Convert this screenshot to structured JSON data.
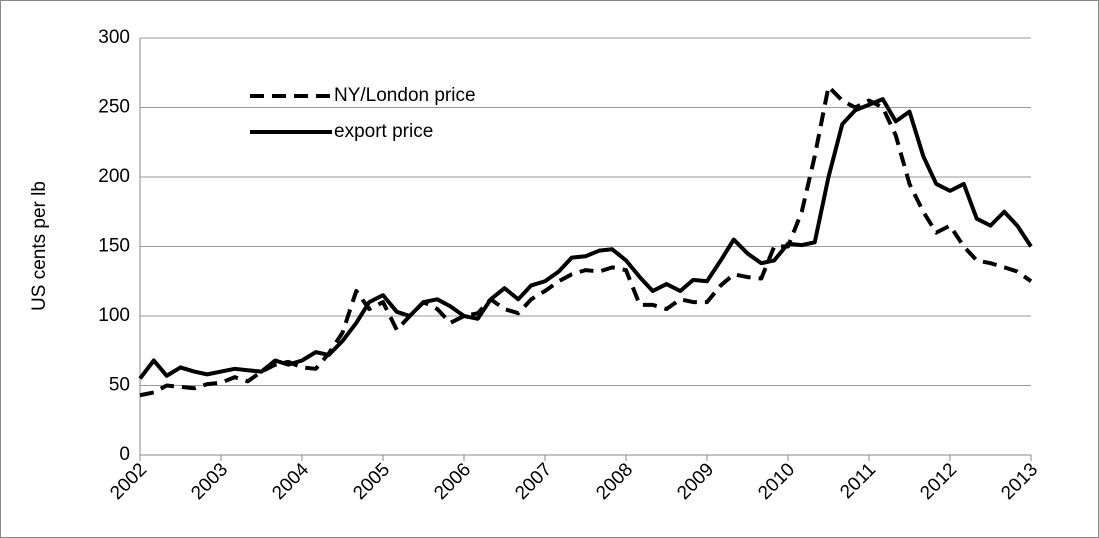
{
  "chart_data": {
    "type": "line",
    "ylabel": "US cents per lb",
    "x": [
      2002,
      2002.17,
      2002.33,
      2002.5,
      2002.67,
      2002.83,
      2003,
      2003.17,
      2003.33,
      2003.5,
      2003.67,
      2003.83,
      2004,
      2004.17,
      2004.33,
      2004.5,
      2004.67,
      2004.83,
      2005,
      2005.17,
      2005.33,
      2005.5,
      2005.67,
      2005.83,
      2006,
      2006.17,
      2006.33,
      2006.5,
      2006.67,
      2006.83,
      2007,
      2007.17,
      2007.33,
      2007.5,
      2007.67,
      2007.83,
      2008,
      2008.17,
      2008.33,
      2008.5,
      2008.67,
      2008.83,
      2009,
      2009.17,
      2009.33,
      2009.5,
      2009.67,
      2009.83,
      2010,
      2010.17,
      2010.33,
      2010.5,
      2010.67,
      2010.83,
      2011,
      2011.17,
      2011.33,
      2011.5,
      2011.67,
      2011.83,
      2012,
      2012.17,
      2012.33,
      2012.5,
      2012.67,
      2012.83,
      2013
    ],
    "series": [
      {
        "name": "NY/London price",
        "color": "#000000",
        "dash": true,
        "values": [
          43,
          45,
          50,
          49,
          48,
          51,
          52,
          56,
          53,
          60,
          65,
          67,
          63,
          62,
          73,
          88,
          118,
          105,
          110,
          90,
          100,
          110,
          105,
          95,
          100,
          102,
          112,
          105,
          102,
          112,
          118,
          125,
          130,
          133,
          132,
          135,
          133,
          108,
          108,
          105,
          112,
          110,
          110,
          122,
          130,
          128,
          127,
          150,
          150,
          175,
          215,
          265,
          255,
          250,
          255,
          250,
          230,
          195,
          175,
          160,
          165,
          150,
          140,
          138,
          135,
          132,
          125
        ]
      },
      {
        "name": "export price",
        "color": "#000000",
        "dash": false,
        "values": [
          55,
          68,
          57,
          63,
          60,
          58,
          60,
          62,
          61,
          60,
          68,
          65,
          68,
          74,
          72,
          82,
          95,
          110,
          115,
          103,
          100,
          110,
          112,
          107,
          100,
          98,
          112,
          120,
          112,
          122,
          125,
          132,
          142,
          143,
          147,
          148,
          140,
          128,
          118,
          123,
          118,
          126,
          125,
          140,
          155,
          145,
          138,
          140,
          152,
          151,
          153,
          200,
          238,
          248,
          252,
          256,
          240,
          247,
          215,
          195,
          190,
          195,
          170,
          165,
          175,
          165,
          150
        ]
      }
    ],
    "xlim": [
      2002,
      2013
    ],
    "xticks": [
      2002,
      2003,
      2004,
      2005,
      2006,
      2007,
      2008,
      2009,
      2010,
      2011,
      2012,
      2013
    ],
    "ylim": [
      0,
      300
    ],
    "yticks": [
      0,
      50,
      100,
      150,
      200,
      250,
      300
    ],
    "grid": true,
    "legend": "upper-left"
  }
}
